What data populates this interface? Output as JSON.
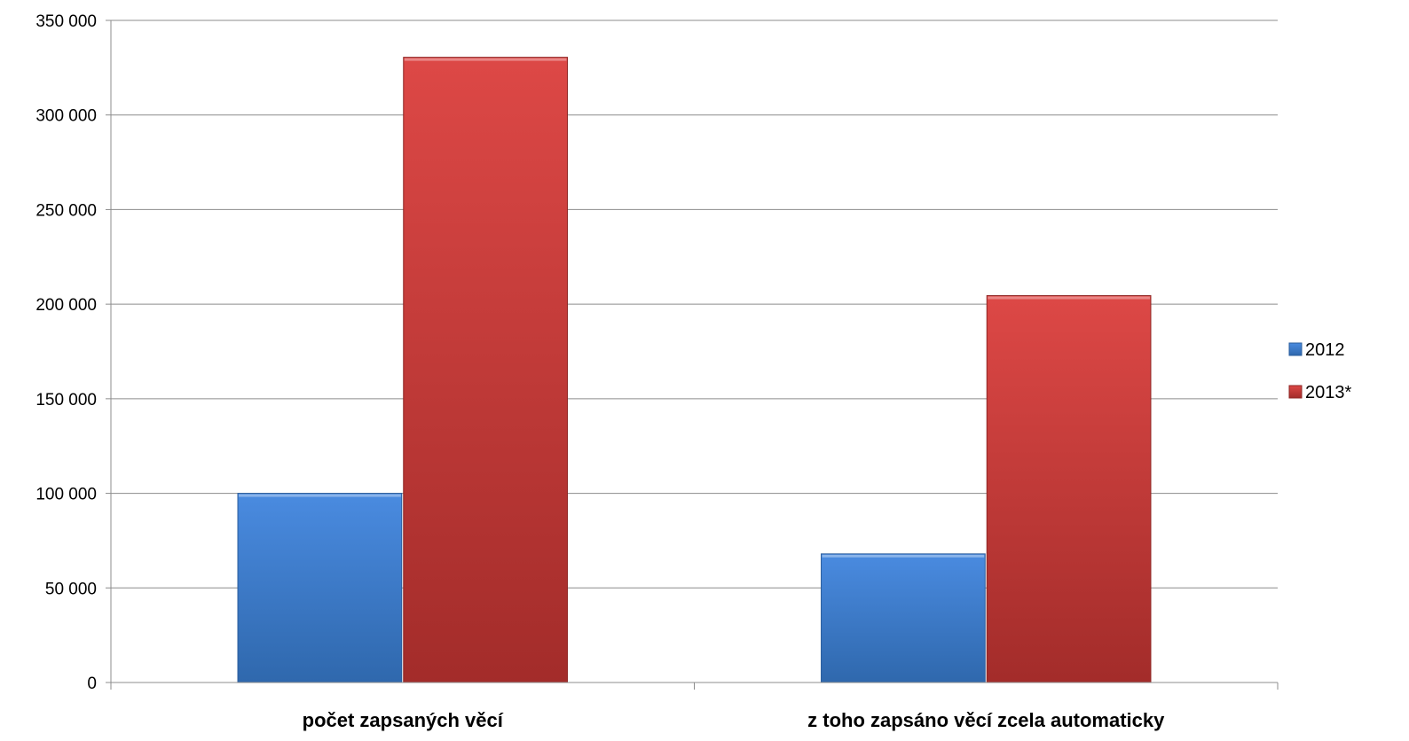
{
  "chart_data": {
    "type": "bar",
    "title": "",
    "xlabel": "",
    "ylabel": "",
    "categories": [
      "počet zapsaných věcí",
      "z toho zapsáno věcí zcela automaticky"
    ],
    "series": [
      {
        "name": "2012",
        "values": [
          100000,
          68000
        ],
        "color": "#3f7fcf"
      },
      {
        "name": "2013*",
        "values": [
          330500,
          204500
        ],
        "color": "#c83a38"
      }
    ],
    "ylim": [
      0,
      350000
    ],
    "yticks": [
      0,
      50000,
      100000,
      150000,
      200000,
      250000,
      300000,
      350000
    ],
    "ytick_labels": [
      "0",
      "50 000",
      "100 000",
      "150 000",
      "200 000",
      "250 000",
      "300 000",
      "350 000"
    ],
    "grid": true,
    "legend": "right"
  }
}
